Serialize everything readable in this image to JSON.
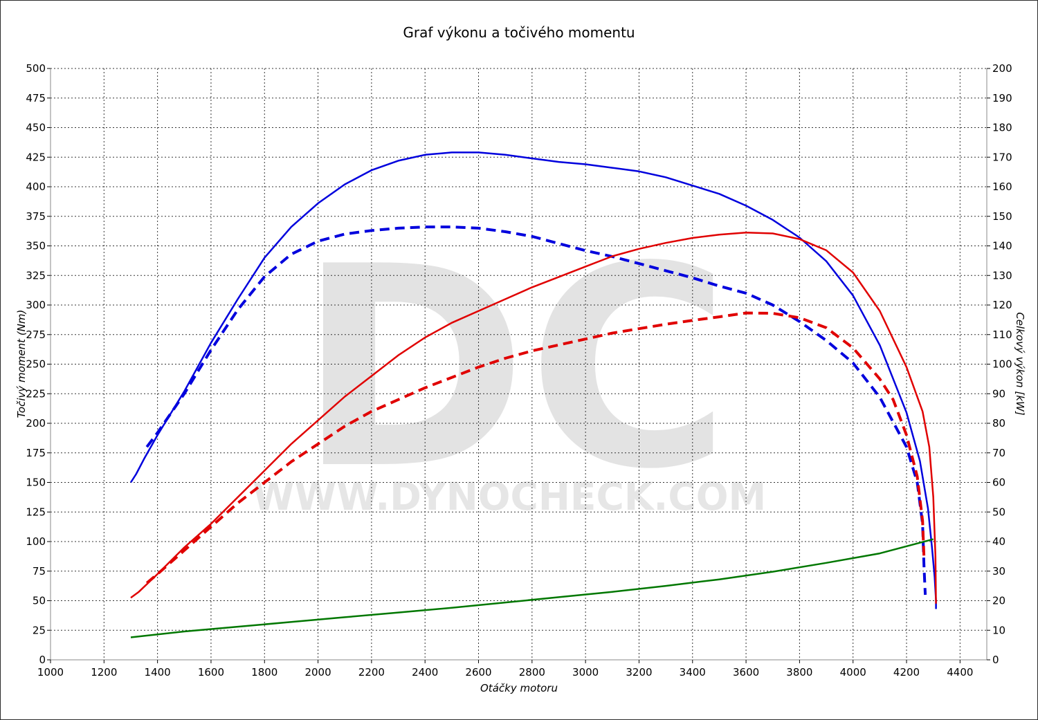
{
  "chart_data": {
    "type": "line",
    "title": "Graf výkonu a točivého momentu",
    "xlabel": "Otáčky motoru",
    "ylabel_left": "Točivý moment (Nm)",
    "ylabel_right": "Celkový výkon [kW]",
    "xlim": [
      1000,
      4500
    ],
    "ylim_left": [
      0,
      500
    ],
    "ylim_right": [
      0,
      200
    ],
    "xticks": [
      1000,
      1200,
      1400,
      1600,
      1800,
      2000,
      2200,
      2400,
      2600,
      2800,
      3000,
      3200,
      3400,
      3600,
      3800,
      4000,
      4200,
      4400
    ],
    "yticks_left": [
      0,
      25,
      50,
      75,
      100,
      125,
      150,
      175,
      200,
      225,
      250,
      275,
      300,
      325,
      350,
      375,
      400,
      425,
      450,
      475,
      500
    ],
    "yticks_right": [
      0,
      10,
      20,
      30,
      40,
      50,
      60,
      70,
      80,
      90,
      100,
      110,
      120,
      130,
      140,
      150,
      160,
      170,
      180,
      190,
      200
    ],
    "grid": true,
    "watermark": {
      "logo": "DC",
      "url": "WWW.DYNOCHECK.COM"
    },
    "series": [
      {
        "color": "#0000dd",
        "dash": "solid",
        "axis": "left",
        "points": [
          [
            1300,
            150
          ],
          [
            1320,
            157
          ],
          [
            1350,
            170
          ],
          [
            1400,
            190
          ],
          [
            1500,
            227
          ],
          [
            1600,
            268
          ],
          [
            1700,
            305
          ],
          [
            1800,
            340
          ],
          [
            1900,
            366
          ],
          [
            2000,
            386
          ],
          [
            2100,
            402
          ],
          [
            2200,
            414
          ],
          [
            2300,
            422
          ],
          [
            2400,
            427
          ],
          [
            2500,
            429
          ],
          [
            2600,
            429
          ],
          [
            2700,
            427
          ],
          [
            2800,
            424
          ],
          [
            2900,
            421
          ],
          [
            3000,
            419
          ],
          [
            3100,
            416
          ],
          [
            3200,
            413
          ],
          [
            3300,
            408
          ],
          [
            3400,
            401
          ],
          [
            3500,
            394
          ],
          [
            3600,
            384
          ],
          [
            3700,
            372
          ],
          [
            3800,
            357
          ],
          [
            3900,
            337
          ],
          [
            4000,
            308
          ],
          [
            4100,
            266
          ],
          [
            4200,
            209
          ],
          [
            4250,
            168
          ],
          [
            4280,
            128
          ],
          [
            4295,
            95
          ],
          [
            4305,
            70
          ],
          [
            4310,
            50
          ],
          [
            4310,
            43
          ]
        ]
      },
      {
        "color": "#0000dd",
        "dash": "dashed",
        "axis": "left",
        "points": [
          [
            1360,
            180
          ],
          [
            1400,
            192
          ],
          [
            1500,
            225
          ],
          [
            1600,
            262
          ],
          [
            1700,
            296
          ],
          [
            1800,
            324
          ],
          [
            1900,
            343
          ],
          [
            2000,
            354
          ],
          [
            2100,
            360
          ],
          [
            2200,
            363
          ],
          [
            2300,
            365
          ],
          [
            2400,
            366
          ],
          [
            2500,
            366
          ],
          [
            2600,
            365
          ],
          [
            2700,
            362
          ],
          [
            2800,
            358
          ],
          [
            2900,
            352
          ],
          [
            3000,
            346
          ],
          [
            3100,
            341
          ],
          [
            3200,
            335
          ],
          [
            3300,
            329
          ],
          [
            3400,
            323
          ],
          [
            3500,
            316
          ],
          [
            3600,
            310
          ],
          [
            3700,
            300
          ],
          [
            3800,
            286
          ],
          [
            3900,
            270
          ],
          [
            4000,
            251
          ],
          [
            4100,
            222
          ],
          [
            4200,
            180
          ],
          [
            4240,
            150
          ],
          [
            4260,
            115
          ],
          [
            4265,
            80
          ],
          [
            4270,
            55
          ]
        ]
      },
      {
        "color": "#e00000",
        "dash": "solid",
        "axis": "right",
        "points": [
          [
            1300,
            21
          ],
          [
            1330,
            23
          ],
          [
            1400,
            29
          ],
          [
            1500,
            38
          ],
          [
            1600,
            46
          ],
          [
            1700,
            55
          ],
          [
            1800,
            64
          ],
          [
            1900,
            73
          ],
          [
            2000,
            81
          ],
          [
            2100,
            89
          ],
          [
            2200,
            96
          ],
          [
            2300,
            103
          ],
          [
            2400,
            109
          ],
          [
            2500,
            114
          ],
          [
            2600,
            118
          ],
          [
            2700,
            122
          ],
          [
            2800,
            126
          ],
          [
            2900,
            129.5
          ],
          [
            3000,
            133
          ],
          [
            3100,
            136.5
          ],
          [
            3200,
            139
          ],
          [
            3300,
            141
          ],
          [
            3400,
            142.7
          ],
          [
            3500,
            143.8
          ],
          [
            3600,
            144.5
          ],
          [
            3700,
            144.2
          ],
          [
            3800,
            142.3
          ],
          [
            3900,
            138.5
          ],
          [
            4000,
            131
          ],
          [
            4100,
            118
          ],
          [
            4200,
            99
          ],
          [
            4260,
            84
          ],
          [
            4285,
            72
          ],
          [
            4300,
            55
          ],
          [
            4308,
            35
          ],
          [
            4310,
            19
          ]
        ]
      },
      {
        "color": "#e00000",
        "dash": "dashed",
        "axis": "right",
        "points": [
          [
            1360,
            26
          ],
          [
            1400,
            29
          ],
          [
            1500,
            37
          ],
          [
            1600,
            45
          ],
          [
            1700,
            53
          ],
          [
            1800,
            60
          ],
          [
            1900,
            67
          ],
          [
            2000,
            73
          ],
          [
            2100,
            79
          ],
          [
            2200,
            84
          ],
          [
            2300,
            88
          ],
          [
            2400,
            92
          ],
          [
            2500,
            95.5
          ],
          [
            2600,
            99
          ],
          [
            2700,
            102
          ],
          [
            2800,
            104.5
          ],
          [
            2900,
            106.5
          ],
          [
            3000,
            108.5
          ],
          [
            3100,
            110.5
          ],
          [
            3200,
            112
          ],
          [
            3300,
            113.5
          ],
          [
            3400,
            114.8
          ],
          [
            3500,
            116
          ],
          [
            3600,
            117.3
          ],
          [
            3700,
            117.2
          ],
          [
            3800,
            115.7
          ],
          [
            3900,
            112.3
          ],
          [
            4000,
            105.5
          ],
          [
            4100,
            95
          ],
          [
            4150,
            88
          ],
          [
            4200,
            76
          ],
          [
            4240,
            62
          ],
          [
            4260,
            47
          ],
          [
            4265,
            35
          ]
        ]
      },
      {
        "color": "#007700",
        "dash": "solid",
        "axis": "left",
        "points": [
          [
            1300,
            19
          ],
          [
            1500,
            24
          ],
          [
            1700,
            28
          ],
          [
            1900,
            32
          ],
          [
            2100,
            36
          ],
          [
            2300,
            40
          ],
          [
            2500,
            44
          ],
          [
            2700,
            48.5
          ],
          [
            2900,
            53
          ],
          [
            3100,
            57.5
          ],
          [
            3300,
            62.5
          ],
          [
            3500,
            68
          ],
          [
            3700,
            74.5
          ],
          [
            3900,
            82
          ],
          [
            4100,
            90
          ],
          [
            4300,
            102
          ]
        ]
      }
    ]
  }
}
